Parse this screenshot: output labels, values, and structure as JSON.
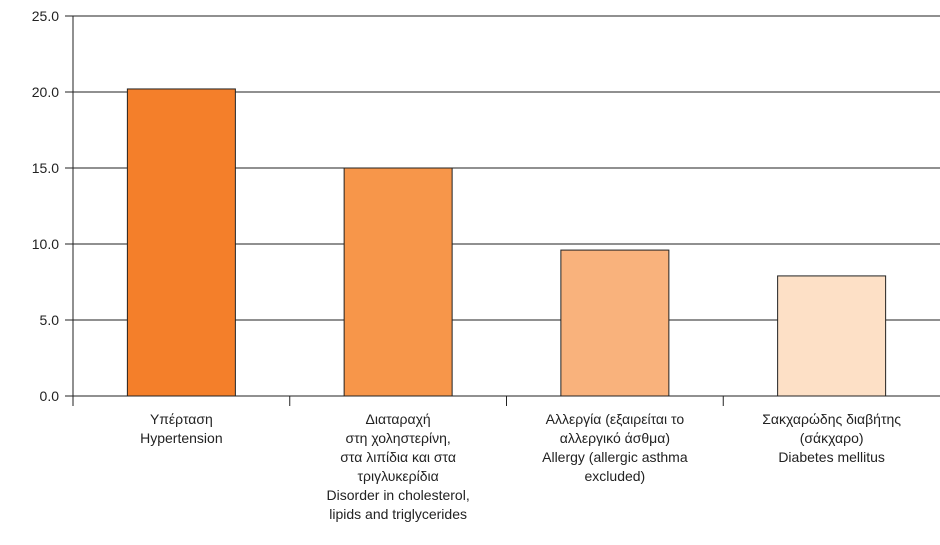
{
  "chart_data": {
    "type": "bar",
    "categories": [
      [
        "Υπέρταση",
        "Hypertension"
      ],
      [
        "Διαταραχή",
        "στη χοληστερίνη,",
        "στα λιπίδια και στα",
        "τριγλυκερίδια",
        "Disorder in cholesterol,",
        "lipids and triglycerides"
      ],
      [
        "Αλλεργία (εξαιρείται το",
        "αλλεργικό άσθμα)",
        "Allergy (allergic asthma",
        "excluded)"
      ],
      [
        "Σακχαρώδης διαβήτης",
        "(σάκχαρο)",
        "Diabetes mellitus"
      ]
    ],
    "values": [
      20.2,
      15.0,
      9.6,
      7.9
    ],
    "colors": [
      "#f47f2a",
      "#f7964a",
      "#f9b27c",
      "#fde0c6"
    ],
    "ylim": [
      0,
      25
    ],
    "yticks": [
      "0.0",
      "5.0",
      "10.0",
      "15.0",
      "20.0",
      "25.0"
    ],
    "grid": true,
    "title": "",
    "xlabel": "",
    "ylabel": ""
  }
}
